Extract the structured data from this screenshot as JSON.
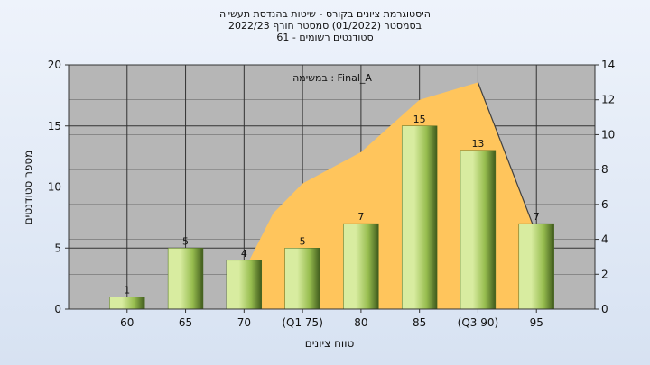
{
  "chart_data": {
    "type": "bar",
    "title_lines": [
      "היסטוגרמת ציונים בקורס - שיטות בהנדסת תעשייה",
      "בסמסטר  (01/2022)  סמסטר חורף 2022/23",
      "סטודנטים רשומים - 61"
    ],
    "annotation": "במשימה : Final_A",
    "ylabel": "מספר סטודנטים",
    "xlabel": "טווח ציונים",
    "categories": [
      "60",
      "65",
      "70",
      "(Q1 75)",
      "80",
      "85",
      "(Q3 90)",
      "95"
    ],
    "values": [
      1,
      5,
      4,
      5,
      7,
      15,
      13,
      7
    ],
    "ylim": [
      0,
      20
    ],
    "yticks": [
      0,
      5,
      10,
      15,
      20
    ],
    "y2lim": [
      0,
      14
    ],
    "y2ticks": [
      0,
      2,
      4,
      6,
      8,
      10,
      12,
      14
    ],
    "area_series": {
      "axis": "right",
      "points": [
        [
          3,
          2.2
        ],
        [
          3.5,
          5.5
        ],
        [
          4,
          7.2
        ],
        [
          5,
          9.0
        ],
        [
          6,
          12.0
        ],
        [
          7,
          13.0
        ],
        [
          8,
          4.3
        ]
      ]
    },
    "grid": true,
    "colors": {
      "plot_bg": "#b6b6b6",
      "bar_light": "#d8eca0",
      "bar_mid": "#97bd4f",
      "bar_dark": "#3f5a1c",
      "area": "#ffc55c",
      "area_line": "#404040"
    }
  }
}
